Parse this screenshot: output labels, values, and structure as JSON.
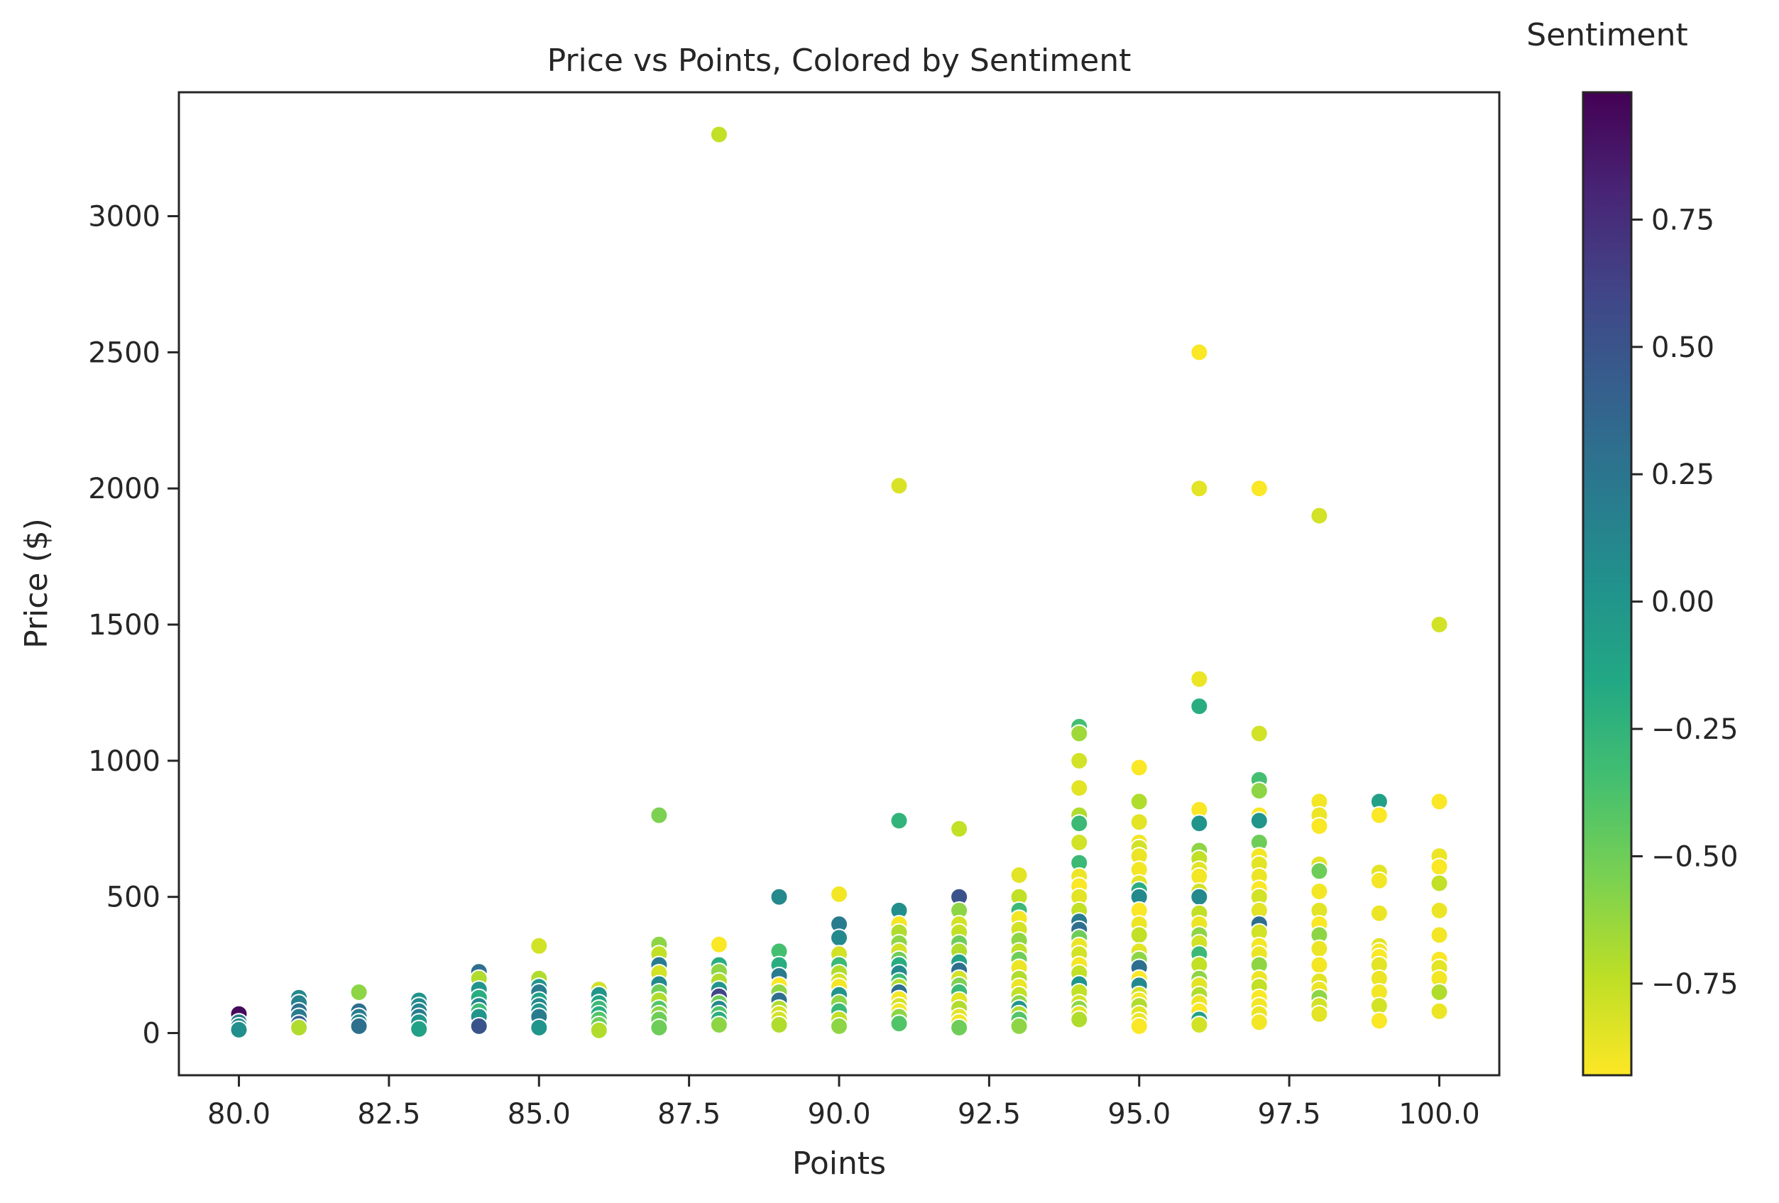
{
  "chart_data": {
    "type": "scatter",
    "title": "Price vs Points, Colored by Sentiment",
    "xlabel": "Points",
    "ylabel": "Price ($)",
    "xlim": [
      79.0,
      101.0
    ],
    "ylim": [
      -155,
      3455
    ],
    "xticks": [
      80.0,
      82.5,
      85.0,
      87.5,
      90.0,
      92.5,
      95.0,
      97.5,
      100.0
    ],
    "xtick_labels": [
      "80.0",
      "82.5",
      "85.0",
      "87.5",
      "90.0",
      "92.5",
      "95.0",
      "97.5",
      "100.0"
    ],
    "yticks": [
      0,
      500,
      1000,
      1500,
      2000,
      2500,
      3000
    ],
    "ytick_labels": [
      "0",
      "500",
      "1000",
      "1500",
      "2000",
      "2500",
      "3000"
    ],
    "colorbar": {
      "label": "Sentiment",
      "colormap": "viridis_r",
      "range": [
        -0.93,
        1.0
      ],
      "ticks": [
        -0.75,
        -0.5,
        -0.25,
        0.0,
        0.25,
        0.5,
        0.75
      ],
      "tick_labels": [
        "−0.75",
        "−0.50",
        "−0.25",
        "0.00",
        "0.25",
        "0.50",
        "0.75"
      ]
    },
    "points": [
      [
        80,
        70,
        0.95
      ],
      [
        80,
        40,
        0.2
      ],
      [
        80,
        25,
        0.1
      ],
      [
        80,
        12,
        0.05
      ],
      [
        81,
        130,
        0.1
      ],
      [
        81,
        110,
        0.15
      ],
      [
        81,
        80,
        0.3
      ],
      [
        81,
        60,
        0.2
      ],
      [
        81,
        35,
        0.4
      ],
      [
        81,
        20,
        -0.7
      ],
      [
        82,
        150,
        -0.6
      ],
      [
        82,
        80,
        0.3
      ],
      [
        82,
        60,
        0.2
      ],
      [
        82,
        40,
        0.1
      ],
      [
        82,
        25,
        0.3
      ],
      [
        83,
        120,
        0.0
      ],
      [
        83,
        100,
        0.1
      ],
      [
        83,
        80,
        0.15
      ],
      [
        83,
        60,
        0.2
      ],
      [
        83,
        40,
        0.0
      ],
      [
        83,
        15,
        -0.1
      ],
      [
        84,
        225,
        0.3
      ],
      [
        84,
        200,
        -0.7
      ],
      [
        84,
        160,
        0.0
      ],
      [
        84,
        130,
        -0.2
      ],
      [
        84,
        100,
        0.1
      ],
      [
        84,
        80,
        -0.3
      ],
      [
        84,
        60,
        0.0
      ],
      [
        84,
        25,
        0.5
      ],
      [
        85,
        320,
        -0.8
      ],
      [
        85,
        200,
        -0.7
      ],
      [
        85,
        170,
        0.0
      ],
      [
        85,
        150,
        0.2
      ],
      [
        85,
        120,
        -0.1
      ],
      [
        85,
        100,
        0.1
      ],
      [
        85,
        80,
        0.0
      ],
      [
        85,
        60,
        0.2
      ],
      [
        85,
        20,
        0.0
      ],
      [
        86,
        160,
        -0.8
      ],
      [
        86,
        140,
        0.0
      ],
      [
        86,
        110,
        -0.1
      ],
      [
        86,
        90,
        -0.3
      ],
      [
        86,
        70,
        -0.2
      ],
      [
        86,
        50,
        -0.4
      ],
      [
        86,
        30,
        -0.5
      ],
      [
        86,
        10,
        -0.7
      ],
      [
        87,
        800,
        -0.55
      ],
      [
        87,
        325,
        -0.6
      ],
      [
        87,
        290,
        -0.75
      ],
      [
        87,
        250,
        0.2
      ],
      [
        87,
        220,
        -0.8
      ],
      [
        87,
        180,
        0.1
      ],
      [
        87,
        150,
        -0.5
      ],
      [
        87,
        120,
        -0.7
      ],
      [
        87,
        90,
        -0.4
      ],
      [
        87,
        70,
        -0.6
      ],
      [
        87,
        50,
        -0.5
      ],
      [
        87,
        20,
        -0.5
      ],
      [
        88,
        3300,
        -0.75
      ],
      [
        88,
        325,
        -0.92
      ],
      [
        88,
        250,
        -0.2
      ],
      [
        88,
        225,
        -0.6
      ],
      [
        88,
        190,
        -0.7
      ],
      [
        88,
        160,
        0.0
      ],
      [
        88,
        135,
        0.6
      ],
      [
        88,
        110,
        -0.5
      ],
      [
        88,
        90,
        0.1
      ],
      [
        88,
        70,
        -0.4
      ],
      [
        88,
        50,
        -0.2
      ],
      [
        88,
        30,
        -0.6
      ],
      [
        89,
        500,
        0.1
      ],
      [
        89,
        300,
        -0.35
      ],
      [
        89,
        250,
        -0.2
      ],
      [
        89,
        210,
        0.2
      ],
      [
        89,
        175,
        -0.92
      ],
      [
        89,
        150,
        -0.6
      ],
      [
        89,
        120,
        0.3
      ],
      [
        89,
        90,
        -0.7
      ],
      [
        89,
        70,
        -0.8
      ],
      [
        89,
        50,
        -0.8
      ],
      [
        89,
        30,
        -0.7
      ],
      [
        90,
        510,
        -0.9
      ],
      [
        90,
        400,
        0.2
      ],
      [
        90,
        350,
        0.1
      ],
      [
        90,
        290,
        -0.8
      ],
      [
        90,
        250,
        -0.3
      ],
      [
        90,
        220,
        -0.7
      ],
      [
        90,
        190,
        -0.8
      ],
      [
        90,
        170,
        -0.9
      ],
      [
        90,
        140,
        0.0
      ],
      [
        90,
        110,
        -0.6
      ],
      [
        90,
        80,
        -0.3
      ],
      [
        90,
        50,
        -0.75
      ],
      [
        90,
        25,
        -0.6
      ],
      [
        91,
        2010,
        -0.82
      ],
      [
        91,
        780,
        -0.25
      ],
      [
        91,
        450,
        0.05
      ],
      [
        91,
        400,
        -0.9
      ],
      [
        91,
        370,
        -0.7
      ],
      [
        91,
        330,
        -0.6
      ],
      [
        91,
        300,
        -0.8
      ],
      [
        91,
        270,
        -0.5
      ],
      [
        91,
        250,
        -0.2
      ],
      [
        91,
        220,
        0.1
      ],
      [
        91,
        190,
        -0.3
      ],
      [
        91,
        170,
        -0.7
      ],
      [
        91,
        150,
        0.3
      ],
      [
        91,
        125,
        -0.9
      ],
      [
        91,
        100,
        -0.8
      ],
      [
        91,
        80,
        -0.9
      ],
      [
        91,
        60,
        -0.6
      ],
      [
        91,
        35,
        -0.4
      ],
      [
        92,
        750,
        -0.75
      ],
      [
        92,
        500,
        0.5
      ],
      [
        92,
        450,
        -0.6
      ],
      [
        92,
        400,
        -0.8
      ],
      [
        92,
        370,
        -0.75
      ],
      [
        92,
        330,
        -0.5
      ],
      [
        92,
        300,
        -0.7
      ],
      [
        92,
        260,
        -0.1
      ],
      [
        92,
        230,
        0.3
      ],
      [
        92,
        200,
        -0.8
      ],
      [
        92,
        175,
        -0.55
      ],
      [
        92,
        150,
        -0.3
      ],
      [
        92,
        120,
        -0.85
      ],
      [
        92,
        90,
        -0.7
      ],
      [
        92,
        60,
        -0.85
      ],
      [
        92,
        40,
        -0.9
      ],
      [
        92,
        20,
        -0.5
      ],
      [
        93,
        580,
        -0.85
      ],
      [
        93,
        500,
        -0.75
      ],
      [
        93,
        450,
        -0.3
      ],
      [
        93,
        420,
        -0.9
      ],
      [
        93,
        380,
        -0.8
      ],
      [
        93,
        340,
        -0.6
      ],
      [
        93,
        300,
        -0.75
      ],
      [
        93,
        270,
        -0.5
      ],
      [
        93,
        240,
        -0.88
      ],
      [
        93,
        200,
        -0.7
      ],
      [
        93,
        170,
        -0.88
      ],
      [
        93,
        140,
        -0.75
      ],
      [
        93,
        110,
        -0.6
      ],
      [
        93,
        90,
        0.0
      ],
      [
        93,
        70,
        -0.7
      ],
      [
        93,
        50,
        -0.4
      ],
      [
        93,
        25,
        -0.6
      ],
      [
        94,
        1125,
        -0.35
      ],
      [
        94,
        1100,
        -0.65
      ],
      [
        94,
        1000,
        -0.8
      ],
      [
        94,
        900,
        -0.85
      ],
      [
        94,
        800,
        -0.7
      ],
      [
        94,
        770,
        -0.3
      ],
      [
        94,
        700,
        -0.8
      ],
      [
        94,
        625,
        -0.3
      ],
      [
        94,
        575,
        -0.88
      ],
      [
        94,
        540,
        -0.92
      ],
      [
        94,
        500,
        -0.85
      ],
      [
        94,
        450,
        -0.75
      ],
      [
        94,
        410,
        0.2
      ],
      [
        94,
        380,
        0.3
      ],
      [
        94,
        350,
        -0.5
      ],
      [
        94,
        320,
        -0.88
      ],
      [
        94,
        290,
        -0.8
      ],
      [
        94,
        250,
        -0.9
      ],
      [
        94,
        220,
        -0.75
      ],
      [
        94,
        180,
        0.0
      ],
      [
        94,
        150,
        -0.75
      ],
      [
        94,
        110,
        -0.8
      ],
      [
        94,
        90,
        -0.6
      ],
      [
        94,
        70,
        -0.85
      ],
      [
        94,
        50,
        -0.7
      ],
      [
        95,
        975,
        -0.92
      ],
      [
        95,
        850,
        -0.7
      ],
      [
        95,
        775,
        -0.85
      ],
      [
        95,
        700,
        -0.9
      ],
      [
        95,
        680,
        -0.8
      ],
      [
        95,
        650,
        -0.88
      ],
      [
        95,
        600,
        -0.9
      ],
      [
        95,
        550,
        -0.85
      ],
      [
        95,
        525,
        -0.2
      ],
      [
        95,
        500,
        0.1
      ],
      [
        95,
        450,
        -0.92
      ],
      [
        95,
        400,
        -0.88
      ],
      [
        95,
        360,
        -0.75
      ],
      [
        95,
        300,
        -0.85
      ],
      [
        95,
        270,
        -0.6
      ],
      [
        95,
        240,
        0.3
      ],
      [
        95,
        200,
        -0.92
      ],
      [
        95,
        175,
        0.1
      ],
      [
        95,
        140,
        -0.8
      ],
      [
        95,
        120,
        -0.9
      ],
      [
        95,
        100,
        -0.7
      ],
      [
        95,
        70,
        -0.85
      ],
      [
        95,
        45,
        -0.88
      ],
      [
        95,
        25,
        -0.92
      ],
      [
        96,
        2500,
        -0.92
      ],
      [
        96,
        2000,
        -0.85
      ],
      [
        96,
        1300,
        -0.88
      ],
      [
        96,
        1200,
        -0.2
      ],
      [
        96,
        820,
        -0.92
      ],
      [
        96,
        770,
        0.0
      ],
      [
        96,
        670,
        -0.6
      ],
      [
        96,
        640,
        -0.75
      ],
      [
        96,
        600,
        -0.85
      ],
      [
        96,
        575,
        -0.9
      ],
      [
        96,
        520,
        -0.8
      ],
      [
        96,
        500,
        0.1
      ],
      [
        96,
        440,
        -0.75
      ],
      [
        96,
        400,
        -0.88
      ],
      [
        96,
        360,
        -0.6
      ],
      [
        96,
        330,
        -0.8
      ],
      [
        96,
        290,
        -0.3
      ],
      [
        96,
        250,
        -0.75
      ],
      [
        96,
        200,
        -0.6
      ],
      [
        96,
        175,
        -0.85
      ],
      [
        96,
        140,
        -0.7
      ],
      [
        96,
        110,
        -0.88
      ],
      [
        96,
        80,
        -0.92
      ],
      [
        96,
        50,
        -0.1
      ],
      [
        96,
        30,
        -0.8
      ],
      [
        97,
        2000,
        -0.92
      ],
      [
        97,
        1100,
        -0.8
      ],
      [
        97,
        930,
        -0.35
      ],
      [
        97,
        890,
        -0.6
      ],
      [
        97,
        800,
        -0.92
      ],
      [
        97,
        780,
        0.0
      ],
      [
        97,
        700,
        -0.5
      ],
      [
        97,
        650,
        -0.9
      ],
      [
        97,
        620,
        -0.85
      ],
      [
        97,
        575,
        -0.88
      ],
      [
        97,
        530,
        -0.92
      ],
      [
        97,
        500,
        -0.8
      ],
      [
        97,
        450,
        -0.85
      ],
      [
        97,
        400,
        0.3
      ],
      [
        97,
        370,
        -0.8
      ],
      [
        97,
        320,
        -0.9
      ],
      [
        97,
        290,
        -0.88
      ],
      [
        97,
        250,
        -0.6
      ],
      [
        97,
        200,
        -0.88
      ],
      [
        97,
        170,
        -0.75
      ],
      [
        97,
        130,
        -0.92
      ],
      [
        97,
        100,
        -0.9
      ],
      [
        97,
        70,
        -0.88
      ],
      [
        97,
        40,
        -0.9
      ],
      [
        98,
        1900,
        -0.8
      ],
      [
        98,
        850,
        -0.9
      ],
      [
        98,
        800,
        -0.88
      ],
      [
        98,
        760,
        -0.92
      ],
      [
        98,
        620,
        -0.85
      ],
      [
        98,
        595,
        -0.5
      ],
      [
        98,
        520,
        -0.9
      ],
      [
        98,
        450,
        -0.85
      ],
      [
        98,
        400,
        -0.92
      ],
      [
        98,
        360,
        -0.6
      ],
      [
        98,
        310,
        -0.88
      ],
      [
        98,
        250,
        -0.9
      ],
      [
        98,
        190,
        -0.85
      ],
      [
        98,
        160,
        -0.88
      ],
      [
        98,
        130,
        -0.6
      ],
      [
        98,
        100,
        -0.8
      ],
      [
        98,
        70,
        -0.85
      ],
      [
        99,
        850,
        -0.1
      ],
      [
        99,
        800,
        -0.92
      ],
      [
        99,
        590,
        -0.85
      ],
      [
        99,
        560,
        -0.9
      ],
      [
        99,
        440,
        -0.88
      ],
      [
        99,
        320,
        -0.85
      ],
      [
        99,
        300,
        -0.9
      ],
      [
        99,
        280,
        -0.92
      ],
      [
        99,
        250,
        -0.85
      ],
      [
        99,
        200,
        -0.88
      ],
      [
        99,
        150,
        -0.9
      ],
      [
        99,
        100,
        -0.8
      ],
      [
        99,
        45,
        -0.92
      ],
      [
        100,
        1500,
        -0.8
      ],
      [
        100,
        850,
        -0.92
      ],
      [
        100,
        650,
        -0.88
      ],
      [
        100,
        610,
        -0.92
      ],
      [
        100,
        550,
        -0.75
      ],
      [
        100,
        450,
        -0.88
      ],
      [
        100,
        360,
        -0.9
      ],
      [
        100,
        270,
        -0.92
      ],
      [
        100,
        240,
        -0.85
      ],
      [
        100,
        200,
        -0.9
      ],
      [
        100,
        150,
        -0.7
      ],
      [
        100,
        80,
        -0.88
      ]
    ]
  }
}
